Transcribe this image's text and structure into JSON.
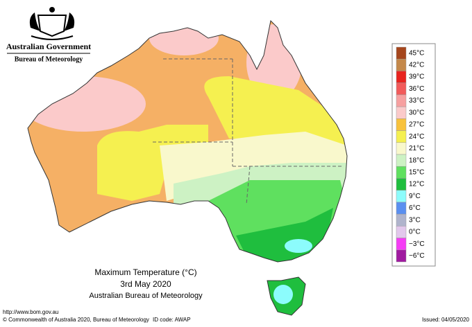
{
  "header": {
    "government": "Australian Government",
    "bureau": "Bureau of Meteorology"
  },
  "title": {
    "line1": "Maximum Temperature (°C)",
    "line2": "3rd May 2020",
    "line3": "Australian Bureau of Meteorology"
  },
  "legend": {
    "items": [
      {
        "label": "45°C",
        "color": "#a5461c"
      },
      {
        "label": "42°C",
        "color": "#c4884a"
      },
      {
        "label": "39°C",
        "color": "#e8231e"
      },
      {
        "label": "36°C",
        "color": "#f25a5a"
      },
      {
        "label": "33°C",
        "color": "#f7a0a0"
      },
      {
        "label": "30°C",
        "color": "#fbcaca"
      },
      {
        "label": "27°C",
        "color": "#f8c23c"
      },
      {
        "label": "24°C",
        "color": "#f5f050"
      },
      {
        "label": "21°C",
        "color": "#f9f8cc"
      },
      {
        "label": "18°C",
        "color": "#cdf2c4"
      },
      {
        "label": "15°C",
        "color": "#5fe05f"
      },
      {
        "label": "12°C",
        "color": "#1fbe3e"
      },
      {
        "label": "9°C",
        "color": "#8cfcfc"
      },
      {
        "label": "6°C",
        "color": "#5a8ff0"
      },
      {
        "label": "3°C",
        "color": "#b0b4cc"
      },
      {
        "label": "0°C",
        "color": "#e2c8ec"
      },
      {
        "label": "−3°C",
        "color": "#f53cf5"
      },
      {
        "label": "−6°C",
        "color": "#a01aa0"
      }
    ]
  },
  "footer": {
    "url": "http://www.bom.gov.au",
    "copyright": "© Commonwealth of Australia 2020, Bureau of Meteorology",
    "id_code": "ID code: AWAP",
    "issued": "Issued: 04/05/2020"
  }
}
